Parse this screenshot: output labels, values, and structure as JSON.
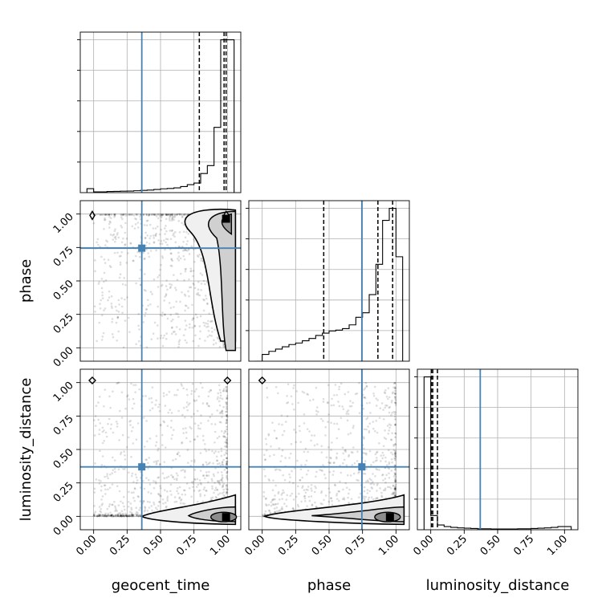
{
  "chart_data": {
    "type": "corner-plot",
    "title": "",
    "parameters": [
      "geocent_time",
      "phase",
      "luminosity_distance"
    ],
    "truths": {
      "geocent_time": 0.36,
      "phase": 0.745,
      "luminosity_distance": 0.37
    },
    "truth_color": "#4682b4",
    "axis_ranges": {
      "geocent_time": [
        -0.1,
        1.1
      ],
      "phase": [
        -0.1,
        1.1
      ],
      "luminosity_distance": [
        -0.1,
        1.1
      ]
    },
    "tick_values": [
      0.0,
      0.25,
      0.5,
      0.75,
      1.0
    ],
    "tick_labels": [
      "0.00",
      "0.25",
      "0.50",
      "0.75",
      "1.00"
    ],
    "grid": true,
    "histograms": [
      {
        "parameter": "geocent_time",
        "quantiles": [
          0.79,
          0.975,
          0.99
        ],
        "bin_edges": [
          -0.05,
          0.0,
          0.05,
          0.1,
          0.15,
          0.2,
          0.25,
          0.3,
          0.35,
          0.4,
          0.45,
          0.5,
          0.55,
          0.6,
          0.65,
          0.7,
          0.75,
          0.8,
          0.85,
          0.9,
          0.95,
          1.0,
          1.05
        ],
        "counts": [
          0.025,
          0.005,
          0.005,
          0.007,
          0.008,
          0.009,
          0.01,
          0.012,
          0.014,
          0.016,
          0.02,
          0.024,
          0.026,
          0.03,
          0.038,
          0.05,
          0.06,
          0.12,
          0.17,
          0.41,
          0.96,
          0.96
        ]
      },
      {
        "parameter": "phase",
        "quantiles": [
          0.46,
          0.865,
          0.975
        ],
        "bin_edges": [
          -0.05,
          0.0,
          0.05,
          0.1,
          0.15,
          0.2,
          0.25,
          0.3,
          0.35,
          0.4,
          0.45,
          0.5,
          0.55,
          0.6,
          0.65,
          0.7,
          0.75,
          0.8,
          0.85,
          0.9,
          0.95,
          1.0,
          1.05
        ],
        "counts": [
          0.0,
          0.045,
          0.065,
          0.08,
          0.095,
          0.11,
          0.12,
          0.135,
          0.15,
          0.17,
          0.185,
          0.2,
          0.205,
          0.215,
          0.24,
          0.29,
          0.32,
          0.44,
          0.64,
          0.93,
          1.01,
          0.69
        ]
      },
      {
        "parameter": "luminosity_distance",
        "quantiles": [
          0.005,
          0.015,
          0.05
        ],
        "bin_edges": [
          -0.05,
          0.0,
          0.05,
          0.1,
          0.15,
          0.2,
          0.25,
          0.3,
          0.35,
          0.4,
          0.45,
          0.5,
          0.55,
          0.6,
          0.65,
          0.7,
          0.75,
          0.8,
          0.85,
          0.9,
          0.95,
          1.0,
          1.05
        ],
        "counts": [
          0.97,
          0.09,
          0.03,
          0.02,
          0.015,
          0.012,
          0.01,
          0.008,
          0.006,
          0.006,
          0.005,
          0.005,
          0.005,
          0.005,
          0.006,
          0.006,
          0.008,
          0.01,
          0.012,
          0.015,
          0.02,
          0.02
        ]
      }
    ],
    "pairs": [
      {
        "x": "geocent_time",
        "y": "phase",
        "density_peak": [
          0.99,
          0.965
        ]
      },
      {
        "x": "geocent_time",
        "y": "luminosity_distance",
        "density_peak": [
          0.99,
          -0.005
        ]
      },
      {
        "x": "phase",
        "y": "luminosity_distance",
        "density_peak": [
          0.955,
          -0.005
        ]
      }
    ]
  }
}
